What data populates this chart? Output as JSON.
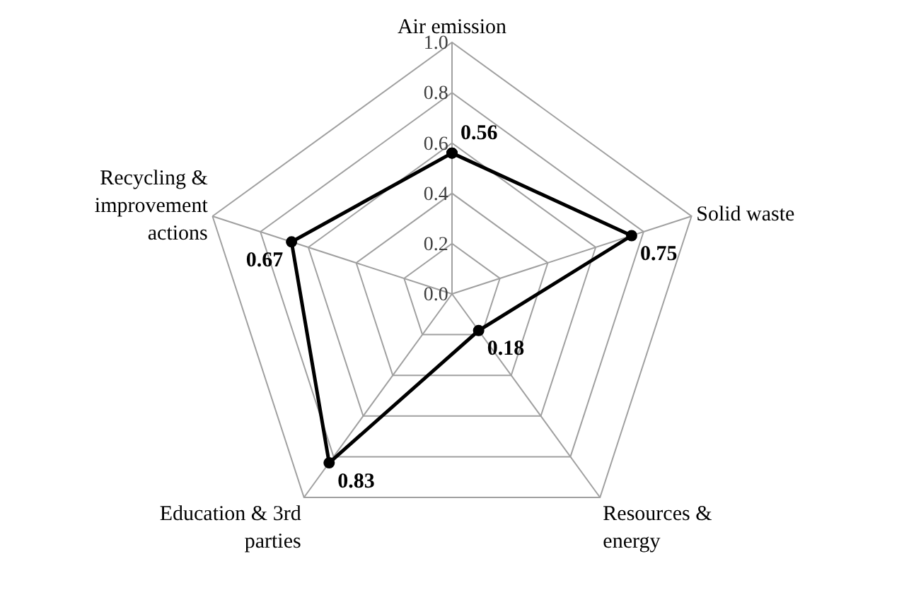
{
  "chart_data": {
    "type": "radar",
    "categories": [
      "Air emission",
      "Solid waste",
      "Resources & energy",
      "Education & 3rd parties",
      "Recycling & improvement actions"
    ],
    "series": [
      {
        "color": "#000000",
        "values": [
          0.56,
          0.75,
          0.18,
          0.83,
          0.67
        ]
      }
    ],
    "ylim": [
      0,
      1
    ],
    "yticks": [
      {
        "value": 0,
        "label": "0.0"
      },
      0.2,
      0.4,
      0.6,
      0.8,
      {
        "value": 1,
        "label": "1.0"
      }
    ],
    "grid": true,
    "marker": "circle",
    "line_style": "solid",
    "data_labels": true,
    "legend": false
  }
}
